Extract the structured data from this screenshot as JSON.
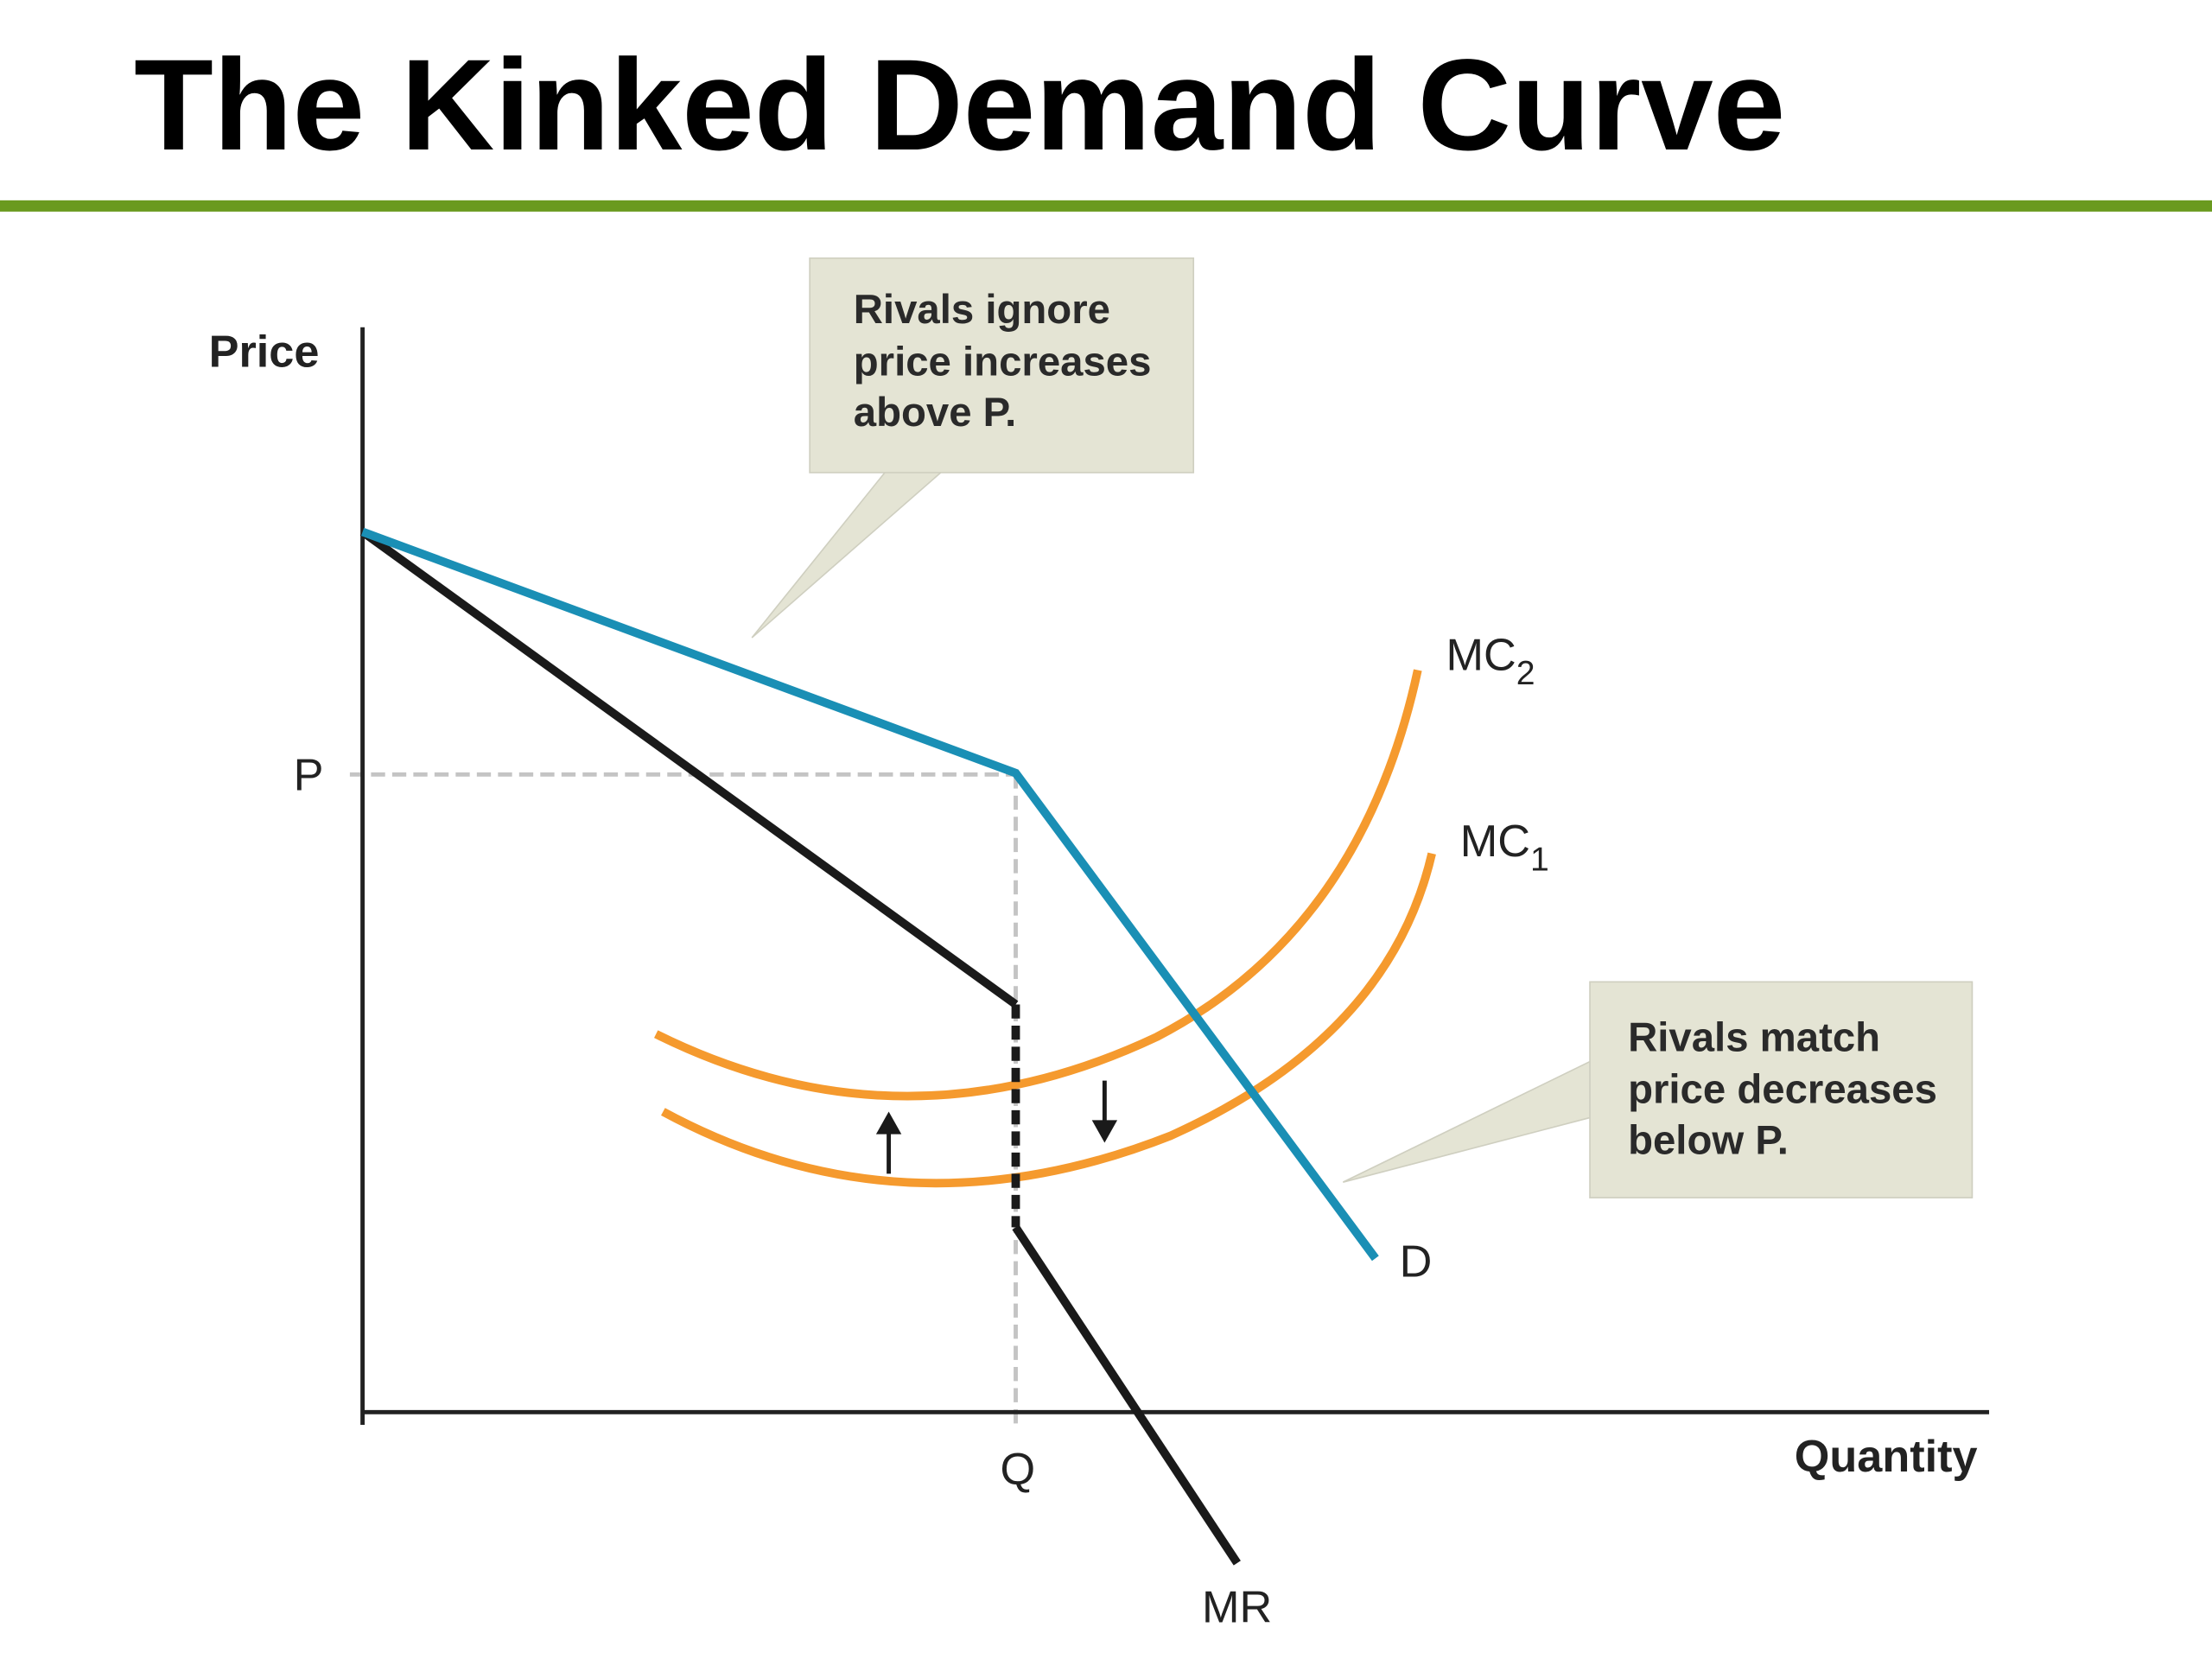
{
  "title": "The Kinked Demand Curve",
  "axes": {
    "y_label": "Price",
    "x_label": "Quantity",
    "price_mark": "P",
    "quantity_mark": "Q"
  },
  "curves": {
    "mc2": {
      "label": "MC",
      "subscript": "2"
    },
    "mc1": {
      "label": "MC",
      "subscript": "1"
    },
    "demand": {
      "label": "D"
    },
    "marginal_revenue": {
      "label": "MR"
    }
  },
  "callouts": [
    {
      "lines": [
        "Rivals ignore",
        "price increases",
        "above P."
      ]
    },
    {
      "lines": [
        "Rivals match",
        "price decreases",
        "below P."
      ]
    }
  ]
}
